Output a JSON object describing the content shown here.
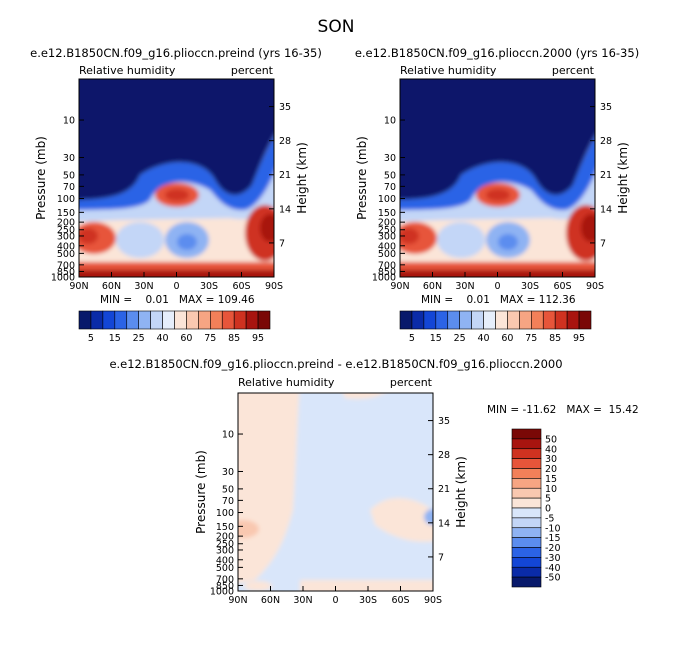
{
  "season_title": "SON",
  "colors": {
    "abs_levels": [
      "#08196b",
      "#0a2ba8",
      "#1346d6",
      "#2b63e6",
      "#5b8def",
      "#8fb3f3",
      "#c3d6f7",
      "#e6eefb",
      "#fbe5d8",
      "#f9c8b0",
      "#f6a583",
      "#f28059",
      "#e7553a",
      "#cf3220",
      "#a8140f",
      "#7a0806"
    ],
    "diff_levels": [
      "#08196b",
      "#0a2ba8",
      "#1346d6",
      "#2b63e6",
      "#5b8def",
      "#8fb3f3",
      "#c3d6f7",
      "#d9e6fa",
      "#fbe5d8",
      "#f9c8b0",
      "#f6a583",
      "#f28059",
      "#e7553a",
      "#cf3220",
      "#a8140f",
      "#7a0806"
    ]
  },
  "chart_data": [
    {
      "type": "heatmap",
      "title": "e.e12.B1850CN.f09_g16.plioccn.preind (yrs 16-35)",
      "left_label": "Relative humidity",
      "right_label": "percent",
      "ylabel": "Pressure (mb)",
      "ylabel_right": "Height (km)",
      "xticks": [
        "90N",
        "60N",
        "30N",
        "0",
        "30S",
        "60S",
        "90S"
      ],
      "yticks": [
        "10",
        "30",
        "50",
        "70",
        "100",
        "150",
        "200",
        "250",
        "300",
        "400",
        "500",
        "700",
        "850",
        "1000"
      ],
      "ytick_values": [
        10,
        30,
        50,
        70,
        100,
        150,
        200,
        250,
        300,
        400,
        500,
        700,
        850,
        1000
      ],
      "height_ticks": [
        "35",
        "28",
        "21",
        "14",
        "7"
      ],
      "stats": "MIN =    0.01   MAX = 109.46",
      "colorbar_labels": [
        "5",
        "15",
        "25",
        "40",
        "60",
        "75",
        "85",
        "95"
      ],
      "levels": [
        5,
        10,
        15,
        20,
        25,
        30,
        35,
        40,
        50,
        60,
        65,
        70,
        75,
        80,
        85,
        90,
        95
      ],
      "ylim": [
        1000,
        3
      ]
    },
    {
      "type": "heatmap",
      "title": "e.e12.B1850CN.f09_g16.plioccn.2000 (yrs 16-35)",
      "left_label": "Relative humidity",
      "right_label": "percent",
      "ylabel": "Pressure (mb)",
      "ylabel_right": "Height (km)",
      "xticks": [
        "90N",
        "60N",
        "30N",
        "0",
        "30S",
        "60S",
        "90S"
      ],
      "yticks": [
        "10",
        "30",
        "50",
        "70",
        "100",
        "150",
        "200",
        "250",
        "300",
        "400",
        "500",
        "700",
        "850",
        "1000"
      ],
      "ytick_values": [
        10,
        30,
        50,
        70,
        100,
        150,
        200,
        250,
        300,
        400,
        500,
        700,
        850,
        1000
      ],
      "height_ticks": [
        "35",
        "28",
        "21",
        "14",
        "7"
      ],
      "stats": "MIN =    0.01   MAX = 112.36",
      "colorbar_labels": [
        "5",
        "15",
        "25",
        "40",
        "60",
        "75",
        "85",
        "95"
      ],
      "levels": [
        5,
        10,
        15,
        20,
        25,
        30,
        35,
        40,
        50,
        60,
        65,
        70,
        75,
        80,
        85,
        90,
        95
      ],
      "ylim": [
        1000,
        3
      ]
    },
    {
      "type": "heatmap",
      "title": "e.e12.B1850CN.f09_g16.plioccn.preind - e.e12.B1850CN.f09_g16.plioccn.2000",
      "left_label": "Relative humidity",
      "right_label": "percent",
      "ylabel": "Pressure (mb)",
      "ylabel_right": "Height (km)",
      "xticks": [
        "90N",
        "60N",
        "30N",
        "0",
        "30S",
        "60S",
        "90S"
      ],
      "yticks": [
        "10",
        "30",
        "50",
        "70",
        "100",
        "150",
        "200",
        "250",
        "300",
        "400",
        "500",
        "700",
        "850",
        "1000"
      ],
      "ytick_values": [
        10,
        30,
        50,
        70,
        100,
        150,
        200,
        250,
        300,
        400,
        500,
        700,
        850,
        1000
      ],
      "height_ticks": [
        "35",
        "28",
        "21",
        "14",
        "7"
      ],
      "stats": "MIN = -11.62   MAX =  15.42",
      "colorbar_labels": [
        "50",
        "40",
        "30",
        "20",
        "15",
        "10",
        "5",
        "0",
        "-5",
        "-10",
        "-15",
        "-20",
        "-30",
        "-40",
        "-50"
      ],
      "ylim": [
        1000,
        3
      ]
    }
  ]
}
